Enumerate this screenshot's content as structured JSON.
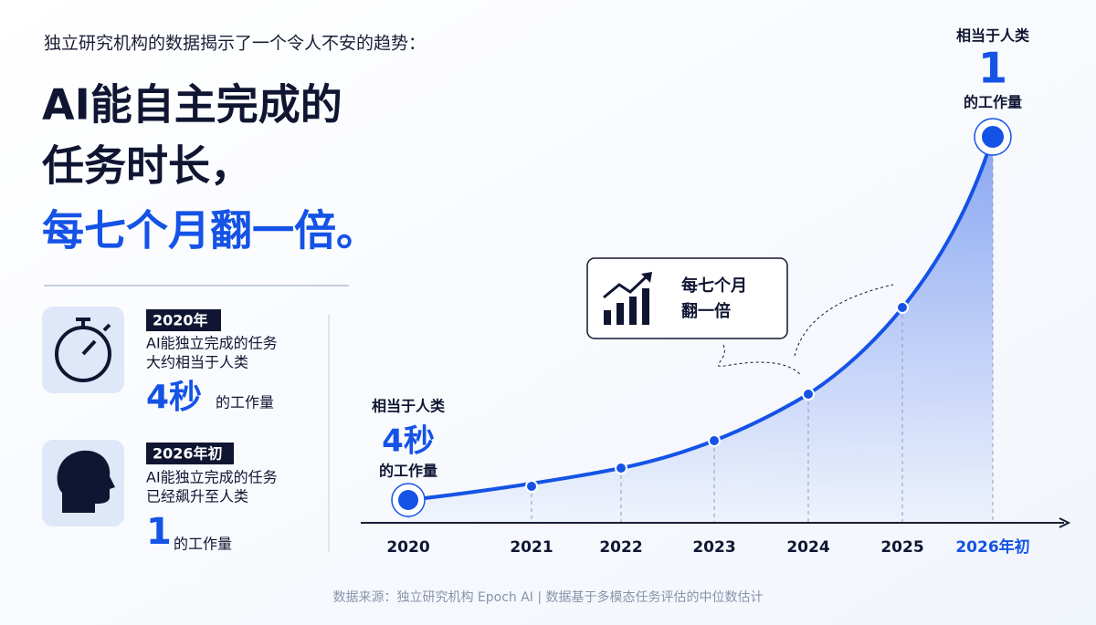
{
  "header": {
    "subtitle": "独立研究机构的数据揭示了一个令人不安的趋势：",
    "title_lines": [
      "AI能自主完成的",
      "任务时长，",
      "每七个月翻一倍。"
    ]
  },
  "cards": [
    {
      "tag": "2020年",
      "lines": [
        "AI能独立完成的任务",
        "大约相当于人类"
      ],
      "amount": "4秒",
      "unit": "的工作量"
    },
    {
      "tag": "2026年初",
      "lines": [
        "AI能独立完成的任务",
        "已经飙升至人类"
      ],
      "amount": "1",
      "unit": "的工作量"
    }
  ],
  "chart": {
    "start_label": {
      "top": "相当于人类",
      "amount": "4秒",
      "bottom": "的工作量"
    },
    "end_label": {
      "top": "相当于人类",
      "amount": "1",
      "bottom": "的工作量"
    },
    "callout": [
      "每七个月",
      "翻一倍"
    ],
    "years": [
      "2020",
      "2021",
      "2022",
      "2023",
      "2024",
      "2025",
      "2026年初"
    ]
  },
  "footer": {
    "source": "数据来源：独立研究机构 Epoch AI | 数据基于多模态任务评估的中位数估计"
  }
}
